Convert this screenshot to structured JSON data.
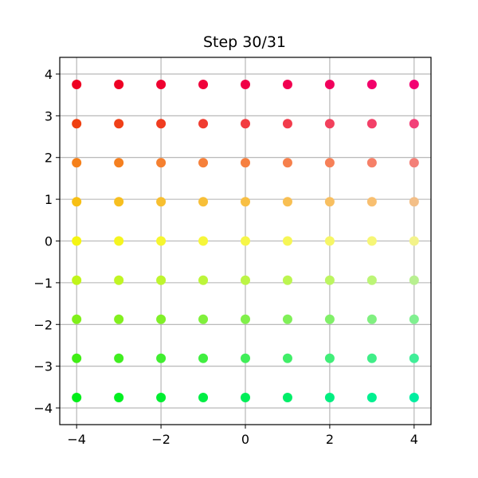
{
  "chart_data": {
    "type": "scatter",
    "title": "Step 30/31",
    "xlabel": "",
    "ylabel": "",
    "xlim": [
      -4.4,
      4.4
    ],
    "ylim": [
      -4.4,
      4.4
    ],
    "grid": true,
    "x_ticks": [
      -4,
      -2,
      0,
      2,
      4
    ],
    "x_tick_labels": [
      "−4",
      "−2",
      "0",
      "2",
      "4"
    ],
    "y_ticks": [
      -4,
      -3,
      -2,
      -1,
      0,
      1,
      2,
      3,
      4
    ],
    "y_tick_labels": [
      "−4",
      "−3",
      "−2",
      "−1",
      "0",
      "1",
      "2",
      "3",
      "4"
    ],
    "x": [
      -4,
      -3,
      -2,
      -1,
      0,
      1,
      2,
      3,
      4
    ],
    "y": [
      3.75,
      2.81,
      1.875,
      0.94,
      0,
      -0.94,
      -1.875,
      -2.81,
      -3.75
    ],
    "row_colors": [
      [
        "#ee0022",
        "#ee0024",
        "#ef0030",
        "#f0003a",
        "#f00046",
        "#f10050",
        "#f1005c",
        "#f2006a",
        "#f30072"
      ],
      [
        "#ef4010",
        "#f04018",
        "#f03c20",
        "#f03c30",
        "#f23c40",
        "#f23c4c",
        "#f2405c",
        "#f34068",
        "#f24078"
      ],
      [
        "#f5801a",
        "#f58020",
        "#f58030",
        "#f6803a",
        "#f68040",
        "#f6804c",
        "#f68058",
        "#f68068",
        "#f38078"
      ],
      [
        "#f7bf14",
        "#f7bf20",
        "#f7bf30",
        "#f7bf38",
        "#f8bf44",
        "#f8bf52",
        "#f8bf60",
        "#f8bf70",
        "#f3bf88"
      ],
      [
        "#f5f512",
        "#f5f520",
        "#f6f630",
        "#f6f63a",
        "#f6f648",
        "#f6f656",
        "#f6f666",
        "#f6f676",
        "#f3f38a"
      ],
      [
        "#c0f51a",
        "#c0f524",
        "#bef52e",
        "#bcf53a",
        "#bcf545",
        "#bcf550",
        "#bcf560",
        "#bcf576",
        "#b8f090"
      ],
      [
        "#80f01a",
        "#82f01e",
        "#80f028",
        "#80f03c",
        "#80f04a",
        "#80f058",
        "#80f068",
        "#80f080",
        "#80f090"
      ],
      [
        "#40ee15",
        "#40ee20",
        "#40ee30",
        "#40ee40",
        "#40ee58",
        "#40ee68",
        "#40ee78",
        "#40ee88",
        "#40ee98"
      ],
      [
        "#00ee18",
        "#00f020",
        "#00ee30",
        "#00ee44",
        "#00ee58",
        "#00ee68",
        "#00ee80",
        "#00f090",
        "#00eea0"
      ]
    ]
  }
}
